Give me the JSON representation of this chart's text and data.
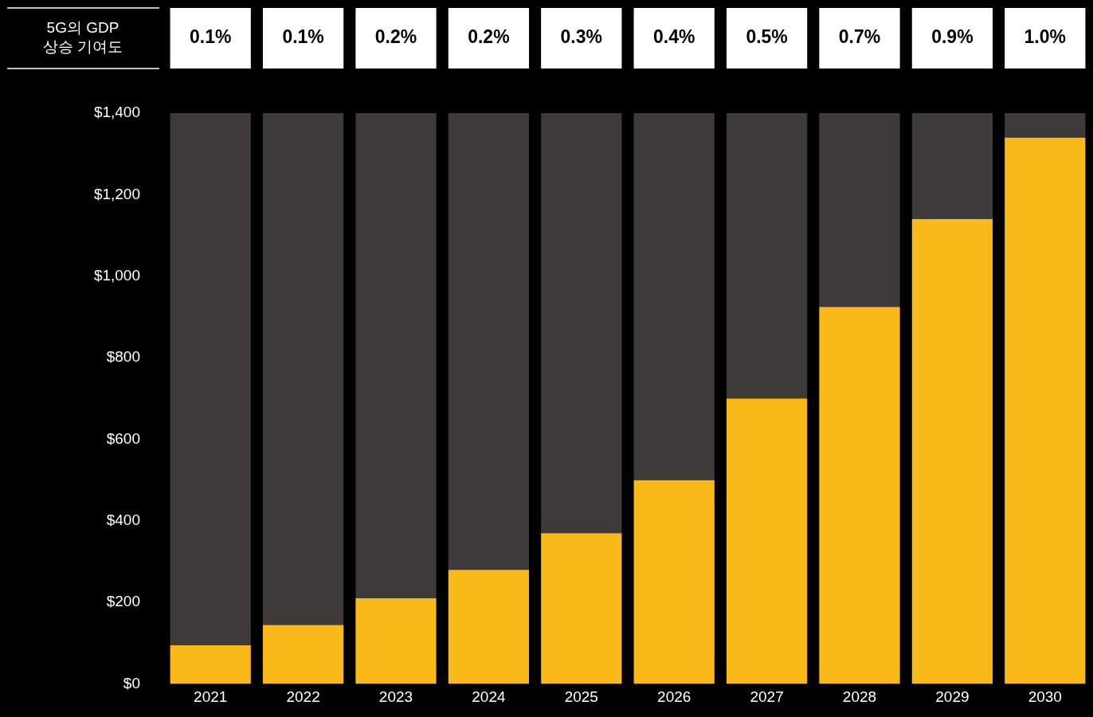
{
  "chart_data": {
    "type": "bar",
    "stacked": true,
    "categories": [
      "2021",
      "2022",
      "2023",
      "2024",
      "2025",
      "2026",
      "2027",
      "2028",
      "2029",
      "2030"
    ],
    "series": [
      {
        "color": "#f9b918",
        "values": [
          95,
          145,
          210,
          280,
          370,
          500,
          700,
          925,
          1140,
          1340
        ]
      },
      {
        "color": "#3d3a39",
        "values": [
          1305,
          1255,
          1190,
          1120,
          1030,
          900,
          700,
          475,
          260,
          60
        ]
      }
    ],
    "ylim": [
      0,
      1400
    ],
    "yticks": [
      {
        "value": 0,
        "label": "$0"
      },
      {
        "value": 200,
        "label": "$200"
      },
      {
        "value": 400,
        "label": "$400"
      },
      {
        "value": 600,
        "label": "$600"
      },
      {
        "value": 800,
        "label": "$800"
      },
      {
        "value": 1000,
        "label": "$1,000"
      },
      {
        "value": 1200,
        "label": "$1,200"
      },
      {
        "value": 1400,
        "label": "$1,400"
      }
    ],
    "grid": false,
    "legend": false,
    "annotations": [
      "5G의 GDP 상승 기여도",
      "0.1%",
      "0.1%",
      "0.2%",
      "0.2%",
      "0.3%",
      "0.4%",
      "0.5%",
      "0.7%",
      "0.9%",
      "1.0%"
    ]
  }
}
